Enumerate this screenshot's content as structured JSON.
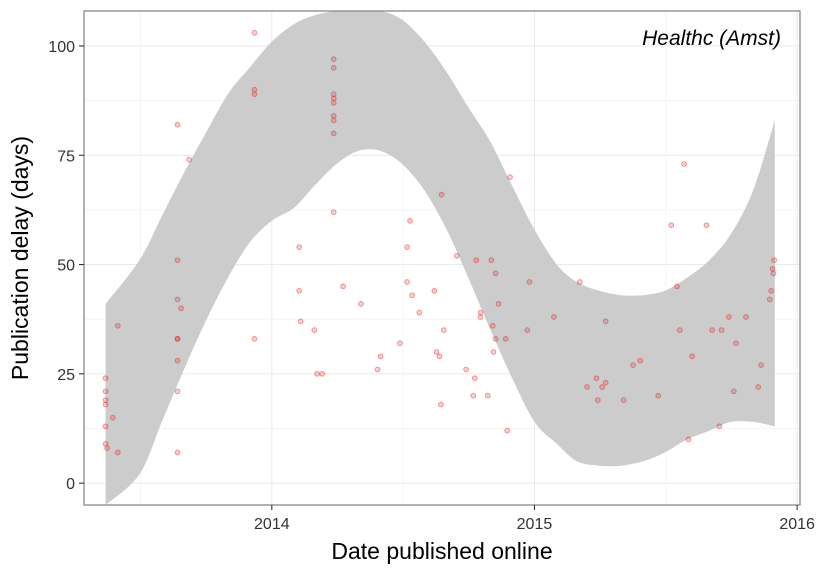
{
  "chart_data": {
    "type": "scatter",
    "title": "",
    "annotation": "Healthc (Amst)",
    "xlabel": "Date published online",
    "ylabel": "Publication delay (days)",
    "xlim": [
      "2013-04-15",
      "2016-01-05"
    ],
    "ylim": [
      -5,
      108
    ],
    "x_ticks": [
      {
        "date": "2014-01-01",
        "label": "2014"
      },
      {
        "date": "2015-01-01",
        "label": "2015"
      },
      {
        "date": "2016-01-01",
        "label": "2016"
      }
    ],
    "y_ticks": [
      {
        "value": 0,
        "label": "0"
      },
      {
        "value": 25,
        "label": "25"
      },
      {
        "value": 50,
        "label": "50"
      },
      {
        "value": 75,
        "label": "75"
      },
      {
        "value": 100,
        "label": "100"
      }
    ],
    "grid": true,
    "point_color": "#e41a1c",
    "band_color": "#cccccc",
    "points": [
      {
        "x": "2013-05-15",
        "y": 24
      },
      {
        "x": "2013-05-15",
        "y": 21
      },
      {
        "x": "2013-05-15",
        "y": 19
      },
      {
        "x": "2013-05-15",
        "y": 18
      },
      {
        "x": "2013-05-15",
        "y": 13
      },
      {
        "x": "2013-05-15",
        "y": 9
      },
      {
        "x": "2013-05-17",
        "y": 8
      },
      {
        "x": "2013-05-25",
        "y": 15
      },
      {
        "x": "2013-06-01",
        "y": 36
      },
      {
        "x": "2013-06-01",
        "y": 7
      },
      {
        "x": "2013-08-23",
        "y": 82
      },
      {
        "x": "2013-08-23",
        "y": 51
      },
      {
        "x": "2013-08-23",
        "y": 42
      },
      {
        "x": "2013-08-23",
        "y": 33
      },
      {
        "x": "2013-08-23",
        "y": 33
      },
      {
        "x": "2013-08-23",
        "y": 28
      },
      {
        "x": "2013-08-23",
        "y": 21
      },
      {
        "x": "2013-08-23",
        "y": 7
      },
      {
        "x": "2013-08-28",
        "y": 40
      },
      {
        "x": "2013-09-08",
        "y": 74
      },
      {
        "x": "2013-12-08",
        "y": 103
      },
      {
        "x": "2013-12-08",
        "y": 90
      },
      {
        "x": "2013-12-08",
        "y": 89
      },
      {
        "x": "2013-12-08",
        "y": 33
      },
      {
        "x": "2014-02-08",
        "y": 54
      },
      {
        "x": "2014-02-08",
        "y": 44
      },
      {
        "x": "2014-02-10",
        "y": 37
      },
      {
        "x": "2014-03-01",
        "y": 35
      },
      {
        "x": "2014-03-05",
        "y": 25
      },
      {
        "x": "2014-03-12",
        "y": 25
      },
      {
        "x": "2014-03-28",
        "y": 97
      },
      {
        "x": "2014-03-28",
        "y": 95
      },
      {
        "x": "2014-03-28",
        "y": 89
      },
      {
        "x": "2014-03-28",
        "y": 88
      },
      {
        "x": "2014-03-28",
        "y": 87
      },
      {
        "x": "2014-03-28",
        "y": 84
      },
      {
        "x": "2014-03-28",
        "y": 83
      },
      {
        "x": "2014-03-28",
        "y": 80
      },
      {
        "x": "2014-03-28",
        "y": 62
      },
      {
        "x": "2014-04-10",
        "y": 45
      },
      {
        "x": "2014-05-05",
        "y": 41
      },
      {
        "x": "2014-05-28",
        "y": 26
      },
      {
        "x": "2014-06-01",
        "y": 29
      },
      {
        "x": "2014-06-28",
        "y": 32
      },
      {
        "x": "2014-07-08",
        "y": 54
      },
      {
        "x": "2014-07-08",
        "y": 46
      },
      {
        "x": "2014-07-12",
        "y": 60
      },
      {
        "x": "2014-07-15",
        "y": 43
      },
      {
        "x": "2014-07-25",
        "y": 39
      },
      {
        "x": "2014-08-15",
        "y": 44
      },
      {
        "x": "2014-08-18",
        "y": 30
      },
      {
        "x": "2014-08-22",
        "y": 29
      },
      {
        "x": "2014-08-24",
        "y": 18
      },
      {
        "x": "2014-08-25",
        "y": 66
      },
      {
        "x": "2014-08-28",
        "y": 35
      },
      {
        "x": "2014-09-15",
        "y": 52
      },
      {
        "x": "2014-09-28",
        "y": 26
      },
      {
        "x": "2014-10-08",
        "y": 20
      },
      {
        "x": "2014-10-10",
        "y": 24
      },
      {
        "x": "2014-10-12",
        "y": 51
      },
      {
        "x": "2014-10-18",
        "y": 39
      },
      {
        "x": "2014-10-18",
        "y": 38
      },
      {
        "x": "2014-10-28",
        "y": 20
      },
      {
        "x": "2014-11-02",
        "y": 51
      },
      {
        "x": "2014-11-04",
        "y": 36
      },
      {
        "x": "2014-11-05",
        "y": 30
      },
      {
        "x": "2014-11-08",
        "y": 48
      },
      {
        "x": "2014-11-08",
        "y": 33
      },
      {
        "x": "2014-11-12",
        "y": 41
      },
      {
        "x": "2014-11-22",
        "y": 33
      },
      {
        "x": "2014-11-24",
        "y": 12
      },
      {
        "x": "2014-11-28",
        "y": 70
      },
      {
        "x": "2014-12-22",
        "y": 35
      },
      {
        "x": "2014-12-25",
        "y": 46
      },
      {
        "x": "2015-01-28",
        "y": 38
      },
      {
        "x": "2015-03-05",
        "y": 46
      },
      {
        "x": "2015-03-15",
        "y": 22
      },
      {
        "x": "2015-03-28",
        "y": 24
      },
      {
        "x": "2015-03-30",
        "y": 19
      },
      {
        "x": "2015-04-05",
        "y": 22
      },
      {
        "x": "2015-04-10",
        "y": 37
      },
      {
        "x": "2015-04-10",
        "y": 23
      },
      {
        "x": "2015-05-05",
        "y": 19
      },
      {
        "x": "2015-05-18",
        "y": 27
      },
      {
        "x": "2015-05-28",
        "y": 28
      },
      {
        "x": "2015-06-22",
        "y": 20
      },
      {
        "x": "2015-07-10",
        "y": 59
      },
      {
        "x": "2015-07-18",
        "y": 45
      },
      {
        "x": "2015-07-22",
        "y": 35
      },
      {
        "x": "2015-07-28",
        "y": 73
      },
      {
        "x": "2015-08-03",
        "y": 10
      },
      {
        "x": "2015-08-08",
        "y": 29
      },
      {
        "x": "2015-08-28",
        "y": 59
      },
      {
        "x": "2015-09-05",
        "y": 35
      },
      {
        "x": "2015-09-15",
        "y": 13
      },
      {
        "x": "2015-09-18",
        "y": 35
      },
      {
        "x": "2015-09-28",
        "y": 38
      },
      {
        "x": "2015-10-05",
        "y": 21
      },
      {
        "x": "2015-10-08",
        "y": 32
      },
      {
        "x": "2015-10-22",
        "y": 38
      },
      {
        "x": "2015-11-08",
        "y": 22
      },
      {
        "x": "2015-11-12",
        "y": 27
      },
      {
        "x": "2015-11-24",
        "y": 42
      },
      {
        "x": "2015-11-26",
        "y": 44
      },
      {
        "x": "2015-11-28",
        "y": 49
      },
      {
        "x": "2015-11-29",
        "y": 48
      },
      {
        "x": "2015-11-30",
        "y": 51
      }
    ],
    "confidence_band": [
      {
        "x": "2013-05-15",
        "lower": -5,
        "upper": 41
      },
      {
        "x": "2013-07-01",
        "lower": 2,
        "upper": 51
      },
      {
        "x": "2013-08-01",
        "lower": 14,
        "upper": 61
      },
      {
        "x": "2013-09-01",
        "lower": 26,
        "upper": 71
      },
      {
        "x": "2013-10-01",
        "lower": 37,
        "upper": 80
      },
      {
        "x": "2013-11-01",
        "lower": 47,
        "upper": 89
      },
      {
        "x": "2013-12-01",
        "lower": 55,
        "upper": 95
      },
      {
        "x": "2014-01-01",
        "lower": 60,
        "upper": 101
      },
      {
        "x": "2014-02-01",
        "lower": 63,
        "upper": 105
      },
      {
        "x": "2014-03-01",
        "lower": 68,
        "upper": 107
      },
      {
        "x": "2014-04-01",
        "lower": 73,
        "upper": 108
      },
      {
        "x": "2014-05-01",
        "lower": 76,
        "upper": 108
      },
      {
        "x": "2014-06-01",
        "lower": 76,
        "upper": 108
      },
      {
        "x": "2014-07-01",
        "lower": 73,
        "upper": 106
      },
      {
        "x": "2014-08-01",
        "lower": 67,
        "upper": 101
      },
      {
        "x": "2014-09-01",
        "lower": 58,
        "upper": 94
      },
      {
        "x": "2014-10-01",
        "lower": 47,
        "upper": 86
      },
      {
        "x": "2014-11-01",
        "lower": 35,
        "upper": 78
      },
      {
        "x": "2014-12-01",
        "lower": 24,
        "upper": 68
      },
      {
        "x": "2015-01-01",
        "lower": 14,
        "upper": 58
      },
      {
        "x": "2015-02-01",
        "lower": 9,
        "upper": 50
      },
      {
        "x": "2015-03-01",
        "lower": 5,
        "upper": 46
      },
      {
        "x": "2015-04-01",
        "lower": 4,
        "upper": 44
      },
      {
        "x": "2015-05-01",
        "lower": 4,
        "upper": 43
      },
      {
        "x": "2015-06-01",
        "lower": 5,
        "upper": 43
      },
      {
        "x": "2015-07-01",
        "lower": 7,
        "upper": 44
      },
      {
        "x": "2015-08-01",
        "lower": 10,
        "upper": 47
      },
      {
        "x": "2015-09-01",
        "lower": 12,
        "upper": 51
      },
      {
        "x": "2015-10-01",
        "lower": 14,
        "upper": 57
      },
      {
        "x": "2015-11-01",
        "lower": 14,
        "upper": 67
      },
      {
        "x": "2015-12-01",
        "lower": 13,
        "upper": 83
      }
    ]
  }
}
